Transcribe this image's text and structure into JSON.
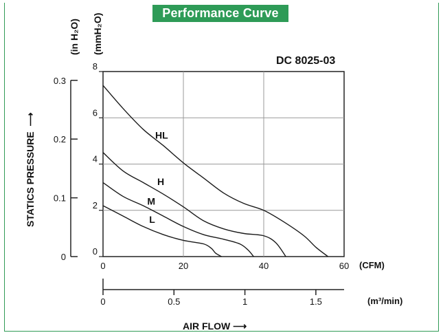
{
  "header": {
    "banner": "Performance Curve"
  },
  "chart_data": {
    "type": "line",
    "title": "Performance Curve",
    "model": "DC 8025-03",
    "ylabel": "STATICS PRESSURE",
    "xlabel": "AIR FLOW",
    "y_units_left": "(in H₂O)",
    "y_units_right": "(mmH₂O)",
    "x_units_top": "(CFM)",
    "x_units_bottom": "(m³/min)",
    "xlim": [
      0,
      60
    ],
    "ylim": [
      0,
      8
    ],
    "grid": true,
    "x_ticks": [
      "0",
      "20",
      "40",
      "60"
    ],
    "y_ticks": [
      "0",
      "2",
      "4",
      "6",
      "8"
    ],
    "y_ticks_inh2o": [
      "0",
      "0.1",
      "0.2",
      "0.3"
    ],
    "x_ticks_m3min": [
      "0",
      "0.5",
      "1",
      "1.5"
    ],
    "series": [
      {
        "name": "HL",
        "points": [
          [
            0,
            7.4
          ],
          [
            5,
            6.4
          ],
          [
            10,
            5.5
          ],
          [
            15,
            4.8
          ],
          [
            20,
            4.05
          ],
          [
            25,
            3.4
          ],
          [
            30,
            2.75
          ],
          [
            35,
            2.3
          ],
          [
            40,
            2.0
          ],
          [
            45,
            1.5
          ],
          [
            50,
            0.9
          ],
          [
            53,
            0.4
          ],
          [
            56,
            0
          ]
        ]
      },
      {
        "name": "H",
        "points": [
          [
            0,
            4.5
          ],
          [
            5,
            3.7
          ],
          [
            10,
            3.2
          ],
          [
            15,
            2.7
          ],
          [
            20,
            2.15
          ],
          [
            25,
            1.55
          ],
          [
            30,
            1.2
          ],
          [
            35,
            1.0
          ],
          [
            40,
            0.9
          ],
          [
            43,
            0.6
          ],
          [
            45.5,
            0
          ]
        ]
      },
      {
        "name": "M",
        "points": [
          [
            0,
            3.2
          ],
          [
            5,
            2.6
          ],
          [
            10,
            2.2
          ],
          [
            15,
            1.75
          ],
          [
            20,
            1.3
          ],
          [
            25,
            0.95
          ],
          [
            30,
            0.75
          ],
          [
            34,
            0.55
          ],
          [
            36,
            0.3
          ],
          [
            37.5,
            0
          ]
        ]
      },
      {
        "name": "L",
        "points": [
          [
            0,
            2.2
          ],
          [
            5,
            1.75
          ],
          [
            10,
            1.3
          ],
          [
            15,
            0.95
          ],
          [
            20,
            0.7
          ],
          [
            25,
            0.55
          ],
          [
            27,
            0.35
          ],
          [
            28,
            0.15
          ],
          [
            29.5,
            0
          ]
        ]
      }
    ]
  },
  "footer": {
    "airflow_label": "AIR FLOW →"
  }
}
